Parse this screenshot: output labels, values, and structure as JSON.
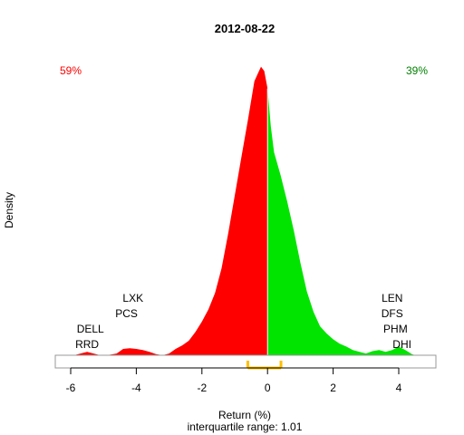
{
  "chart_data": {
    "type": "area",
    "title": "2012-08-22",
    "xlabel": "Return (%)",
    "ylabel": "Density",
    "subtitle": "interquartile range: 1.01",
    "xlim": [
      -6.4,
      5.0
    ],
    "ylim": [
      0,
      1.0
    ],
    "x_ticks": [
      -6,
      -4,
      -2,
      0,
      2,
      4
    ],
    "split_at": 0,
    "negative_share": "59%",
    "positive_share": "39%",
    "negative_color": "#ff0000",
    "positive_color": "#00e400",
    "iqr_color": "#ffc000",
    "iqr": [
      -0.6,
      0.41
    ],
    "density": {
      "x": [
        -5.9,
        -5.7,
        -5.5,
        -5.3,
        -5.1,
        -4.9,
        -4.6,
        -4.4,
        -4.2,
        -4.0,
        -3.8,
        -3.6,
        -3.4,
        -3.2,
        -3.0,
        -2.8,
        -2.6,
        -2.4,
        -2.2,
        -2.0,
        -1.8,
        -1.6,
        -1.4,
        -1.2,
        -1.0,
        -0.8,
        -0.6,
        -0.4,
        -0.3,
        -0.2,
        -0.1,
        0.0,
        0.1,
        0.2,
        0.4,
        0.6,
        0.8,
        1.0,
        1.2,
        1.4,
        1.6,
        1.8,
        2.0,
        2.2,
        2.4,
        2.6,
        2.8,
        3.0,
        3.2,
        3.4,
        3.6,
        3.8,
        4.0,
        4.2,
        4.4,
        4.5
      ],
      "y": [
        0.0,
        0.006,
        0.012,
        0.006,
        0.0,
        0.0,
        0.006,
        0.022,
        0.024,
        0.022,
        0.018,
        0.012,
        0.004,
        0.0,
        0.006,
        0.022,
        0.034,
        0.05,
        0.08,
        0.116,
        0.158,
        0.215,
        0.3,
        0.42,
        0.55,
        0.68,
        0.81,
        0.945,
        0.97,
        0.995,
        0.98,
        0.92,
        0.79,
        0.7,
        0.62,
        0.53,
        0.43,
        0.32,
        0.22,
        0.15,
        0.1,
        0.075,
        0.055,
        0.04,
        0.03,
        0.018,
        0.012,
        0.006,
        0.014,
        0.018,
        0.012,
        0.018,
        0.03,
        0.018,
        0.004,
        0.0
      ]
    },
    "annotations_left": [
      {
        "text": "LXK",
        "x": -4.1,
        "level": 4
      },
      {
        "text": "PCS",
        "x": -4.3,
        "level": 3
      },
      {
        "text": "DELL",
        "x": -5.4,
        "level": 2
      },
      {
        "text": "RRD",
        "x": -5.5,
        "level": 1
      }
    ],
    "annotations_right": [
      {
        "text": "LEN",
        "x": 3.8,
        "level": 4
      },
      {
        "text": "DFS",
        "x": 3.8,
        "level": 3
      },
      {
        "text": "PHM",
        "x": 3.9,
        "level": 2
      },
      {
        "text": "DHI",
        "x": 4.1,
        "level": 1
      }
    ]
  }
}
